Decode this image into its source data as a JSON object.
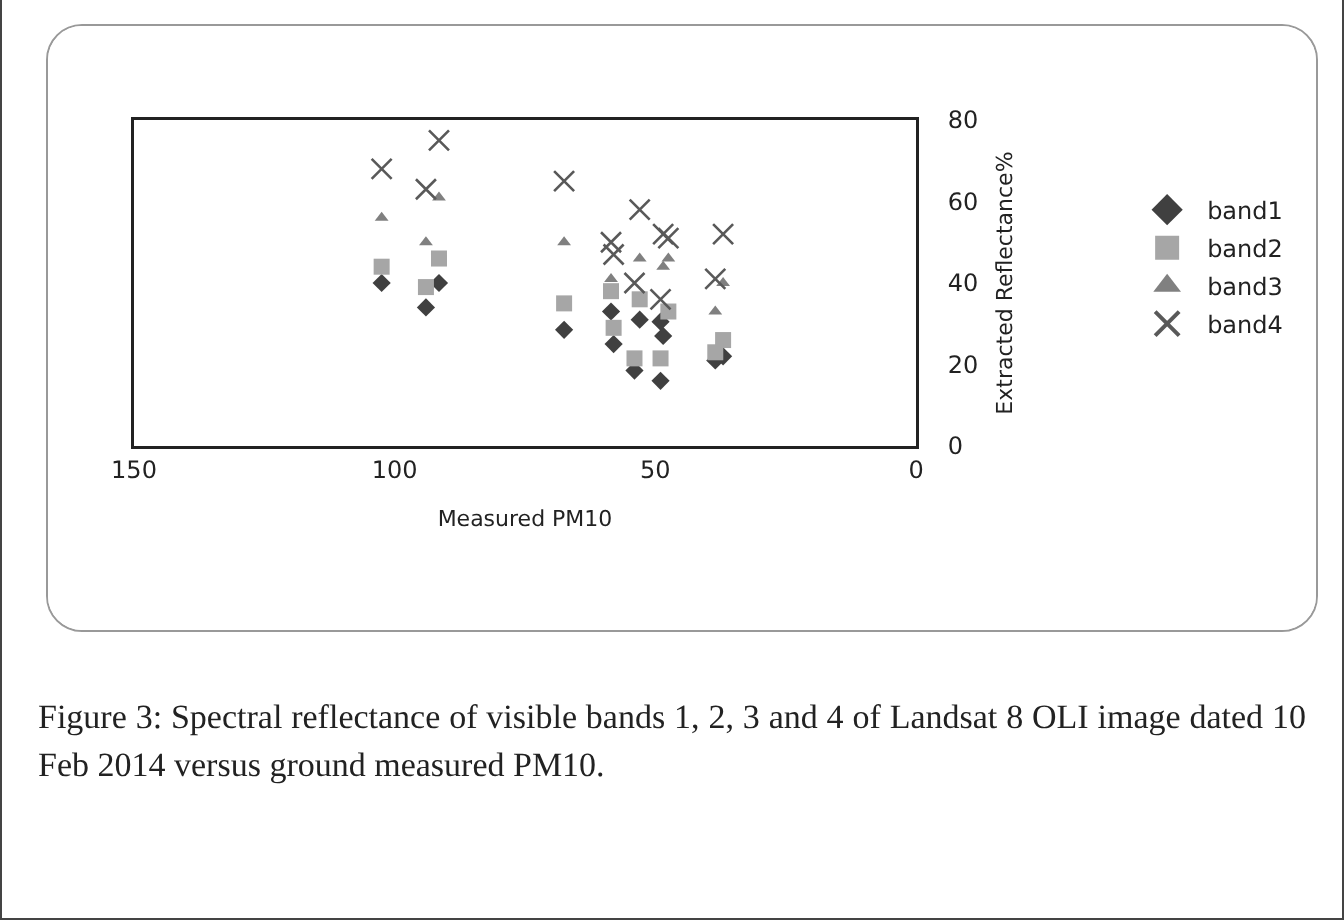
{
  "chart_data": {
    "type": "scatter",
    "xlabel": "Measured PM10",
    "ylabel": "Extracted Reflectance%",
    "xlim": [
      150,
      0
    ],
    "xticks": [
      150,
      100,
      50,
      0
    ],
    "ylim": [
      0,
      80
    ],
    "yticks": [
      0,
      20,
      40,
      60,
      80
    ],
    "grid": false,
    "legend": "right",
    "series": [
      {
        "name": "band1",
        "color": "#404040",
        "marker": "diamond",
        "x": [
          102.5,
          94,
          91.5,
          67.5,
          58.5,
          58,
          53,
          54,
          48.5,
          49,
          49,
          37,
          38.5
        ],
        "values": [
          40,
          34,
          40,
          28.5,
          33,
          25,
          31,
          18.5,
          27,
          30.5,
          16,
          22,
          21
        ]
      },
      {
        "name": "band2",
        "color": "#a6a6a6",
        "marker": "square",
        "x": [
          102.5,
          94,
          91.5,
          67.5,
          58.5,
          58,
          53,
          54,
          49,
          47.5,
          37,
          38.5
        ],
        "values": [
          44,
          39,
          46,
          35,
          38,
          29,
          36,
          21.5,
          21.5,
          33,
          26,
          23
        ]
      },
      {
        "name": "band3",
        "color": "#808080",
        "marker": "triangle",
        "x": [
          102.5,
          94,
          91.5,
          67.5,
          58.5,
          53,
          48.5,
          47.5,
          37,
          38.5
        ],
        "values": [
          56,
          50,
          61,
          50,
          41,
          46,
          44,
          46,
          40,
          33
        ]
      },
      {
        "name": "band4",
        "color": "#595959",
        "marker": "cross",
        "x": [
          102.5,
          94,
          91.5,
          67.5,
          58.5,
          58,
          53,
          54,
          48.5,
          47.5,
          49,
          37,
          38.5
        ],
        "values": [
          68,
          63,
          75,
          65,
          50,
          47,
          58,
          40,
          52,
          51,
          36,
          52,
          41
        ]
      }
    ],
    "annotations": [
      "Figure 3: Spectral reflectance of visible bands 1, 2, 3 and 4 of Landsat 8 OLI image dated 10 Feb 2014 versus ground measured PM10."
    ]
  }
}
